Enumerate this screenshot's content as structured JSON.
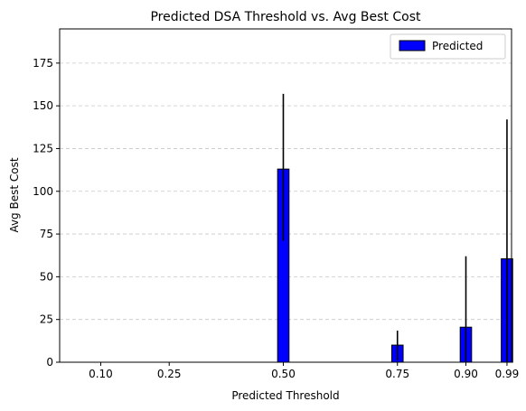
{
  "chart_data": {
    "type": "bar",
    "title": "Predicted DSA Threshold vs. Avg Best Cost",
    "xlabel": "Predicted Threshold",
    "ylabel": "Avg Best Cost",
    "xlim": [
      0.01,
      1.0
    ],
    "ylim": [
      0,
      195
    ],
    "x_ticks": [
      0.1,
      0.25,
      0.5,
      0.75,
      0.9,
      0.99
    ],
    "x_tick_labels": [
      "0.10",
      "0.25",
      "0.50",
      "0.75",
      "0.90",
      "0.99"
    ],
    "y_ticks": [
      0,
      25,
      50,
      75,
      100,
      125,
      150,
      175
    ],
    "y_tick_labels": [
      "0",
      "25",
      "50",
      "75",
      "100",
      "125",
      "150",
      "175"
    ],
    "bar_width": 0.025,
    "grid": {
      "axis": "y",
      "style": "dashed",
      "color": "#c8c8c8"
    },
    "legend": {
      "position": "top-right"
    },
    "series": [
      {
        "name": "Predicted",
        "color": "#0000ff",
        "edge_color": "#000000",
        "x": [
          0.5,
          0.75,
          0.9,
          0.99
        ],
        "values": [
          113,
          10,
          20.5,
          60.5
        ],
        "error_low": [
          42,
          9,
          20.5,
          60.5
        ],
        "error_high": [
          44,
          8.5,
          41.5,
          81.5
        ]
      }
    ]
  }
}
